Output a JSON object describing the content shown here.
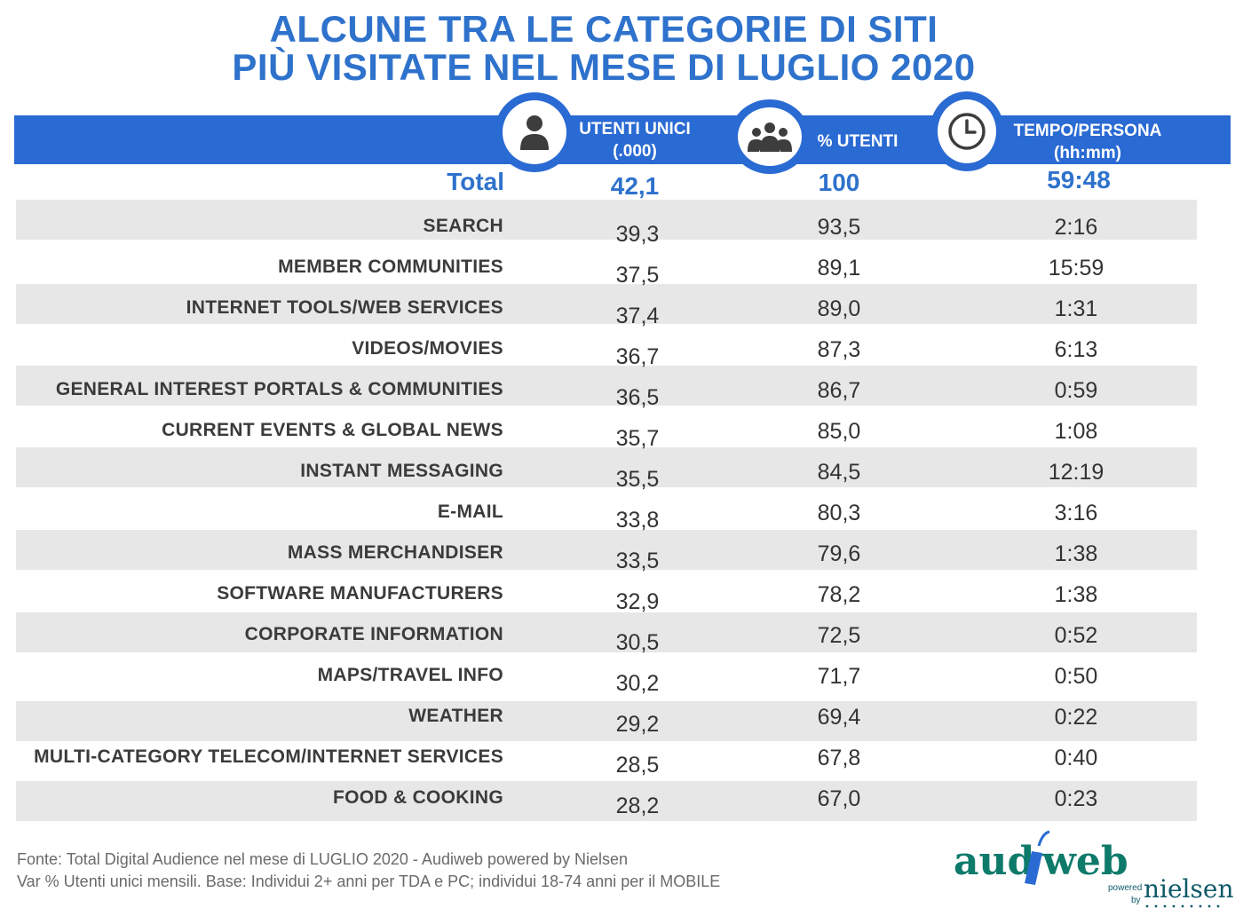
{
  "title": {
    "line1": "ALCUNE TRA LE CATEGORIE DI SITI",
    "line2": "PIÙ VISITATE NEL MESE DI LUGLIO 2020"
  },
  "header": {
    "col1": "UTENTI UNICI",
    "col1_sub": "(.000)",
    "col2": "% UTENTI",
    "col3": "TEMPO/PERSONA",
    "col3_sub": "(hh:mm)",
    "icons": [
      "person-icon",
      "group-icon",
      "clock-icon"
    ]
  },
  "total": {
    "label": "Total",
    "utenti": "42,1",
    "percent": "100",
    "tempo": "59:48"
  },
  "rows": [
    {
      "label": "SEARCH",
      "utenti": "39,3",
      "percent": "93,5",
      "tempo": "2:16"
    },
    {
      "label": "MEMBER COMMUNITIES",
      "utenti": "37,5",
      "percent": "89,1",
      "tempo": "15:59"
    },
    {
      "label": "INTERNET TOOLS/WEB SERVICES",
      "utenti": "37,4",
      "percent": "89,0",
      "tempo": "1:31"
    },
    {
      "label": "VIDEOS/MOVIES",
      "utenti": "36,7",
      "percent": "87,3",
      "tempo": "6:13"
    },
    {
      "label": "GENERAL INTEREST PORTALS & COMMUNITIES",
      "utenti": "36,5",
      "percent": "86,7",
      "tempo": "0:59"
    },
    {
      "label": "CURRENT EVENTS & GLOBAL NEWS",
      "utenti": "35,7",
      "percent": "85,0",
      "tempo": "1:08"
    },
    {
      "label": "INSTANT MESSAGING",
      "utenti": "35,5",
      "percent": "84,5",
      "tempo": "12:19"
    },
    {
      "label": "E-MAIL",
      "utenti": "33,8",
      "percent": "80,3",
      "tempo": "3:16"
    },
    {
      "label": "MASS MERCHANDISER",
      "utenti": "33,5",
      "percent": "79,6",
      "tempo": "1:38"
    },
    {
      "label": "SOFTWARE MANUFACTURERS",
      "utenti": "32,9",
      "percent": "78,2",
      "tempo": "1:38"
    },
    {
      "label": "CORPORATE INFORMATION",
      "utenti": "30,5",
      "percent": "72,5",
      "tempo": "0:52"
    },
    {
      "label": "MAPS/TRAVEL INFO",
      "utenti": "30,2",
      "percent": "71,7",
      "tempo": "0:50"
    },
    {
      "label": "WEATHER",
      "utenti": "29,2",
      "percent": "69,4",
      "tempo": "0:22"
    },
    {
      "label": "MULTI-CATEGORY TELECOM/INTERNET SERVICES",
      "utenti": "28,5",
      "percent": "67,8",
      "tempo": "0:40"
    },
    {
      "label": "FOOD & COOKING",
      "utenti": "28,2",
      "percent": "67,0",
      "tempo": "0:23"
    }
  ],
  "footer": {
    "line1": "Fonte: Total Digital Audience nel mese di LUGLIO 2020 - Audiweb powered by Nielsen",
    "line2": "Var % Utenti unici mensili. Base: Individui 2+ anni per TDA e PC; individui 18-74 anni per il MOBILE"
  },
  "logo": {
    "brand": "audiweb",
    "powered": "powered",
    "by": "by",
    "partner": "nielsen"
  },
  "colors": {
    "accent": "#2a6ad3",
    "title": "#2e72cc",
    "stripe": "#e7e7e7",
    "logo_green": "#0e7a6a"
  }
}
